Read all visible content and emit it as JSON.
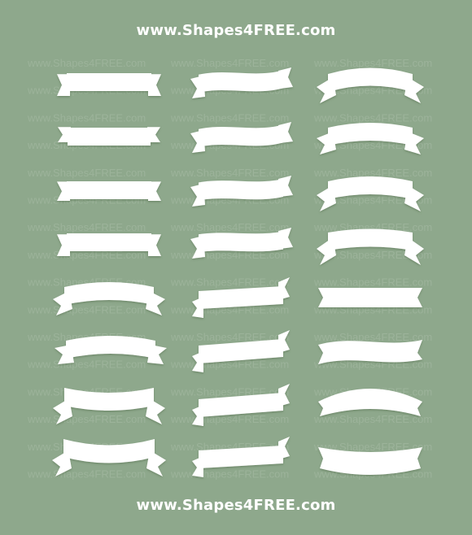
{
  "header": {
    "site": "www.Shapes4FREE.com"
  },
  "footer": {
    "site": "www.Shapes4FREE.com"
  },
  "watermark": {
    "text": "www.Shapes4FREE.com"
  },
  "colors": {
    "background": "#8ea88c",
    "ribbon": "#ffffff",
    "shadow": "#55704f"
  },
  "grid": {
    "rows": 8,
    "columns": 3,
    "ribbon_styles": [
      [
        "flat-notched",
        "wave-up-tails",
        "arch-tails-down"
      ],
      [
        "flat-notched-offset",
        "wave-tails",
        "arch-tails-down"
      ],
      [
        "flat-notched-ends",
        "wave-down-tails",
        "arch-tails-down"
      ],
      [
        "flat-notched-tails",
        "wave-tails",
        "arch-tails-down"
      ],
      [
        "arch-tails-down",
        "flat-tilted-tails",
        "flat-banner"
      ],
      [
        "arch-tails-up",
        "flat-tilted-tails",
        "wave-banner"
      ],
      [
        "arch-curled-tails",
        "flat-tilted-tails",
        "arch-banner"
      ],
      [
        "arch-curled-tails",
        "flat-tilted-tails",
        "smile-banner"
      ]
    ]
  }
}
